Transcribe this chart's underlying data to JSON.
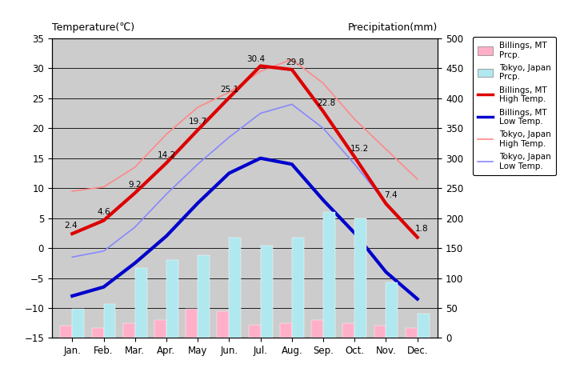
{
  "months": [
    "Jan.",
    "Feb.",
    "Mar.",
    "Apr.",
    "May",
    "Jun.",
    "Jul.",
    "Aug.",
    "Sep.",
    "Oct.",
    "Nov.",
    "Dec."
  ],
  "billings_high": [
    2.4,
    4.6,
    9.2,
    14.2,
    19.7,
    25.1,
    30.4,
    29.8,
    22.8,
    15.2,
    7.4,
    1.8
  ],
  "billings_low": [
    -8.0,
    -6.5,
    -2.5,
    2.0,
    7.5,
    12.5,
    15.0,
    14.0,
    8.0,
    2.5,
    -4.0,
    -8.5
  ],
  "tokyo_high": [
    9.5,
    10.2,
    13.5,
    19.0,
    23.5,
    26.0,
    29.5,
    31.5,
    27.5,
    21.5,
    16.5,
    11.5
  ],
  "tokyo_low": [
    -1.5,
    -0.5,
    3.5,
    9.0,
    14.0,
    18.5,
    22.5,
    24.0,
    20.0,
    14.0,
    7.5,
    2.0
  ],
  "billings_prcp_mm": [
    20,
    17,
    25,
    30,
    48,
    45,
    22,
    24,
    30,
    25,
    20,
    17
  ],
  "tokyo_prcp_mm": [
    48,
    56,
    117,
    130,
    138,
    168,
    154,
    168,
    210,
    200,
    93,
    40
  ],
  "background_color": "#cccccc",
  "title_left": "Temperature(℃)",
  "title_right": "Precipitation(mm)",
  "ylim_left": [
    -15,
    35
  ],
  "ylim_right": [
    0,
    500
  ],
  "bar_color_billings": "#ffb0c8",
  "bar_color_tokyo": "#b0e8f0",
  "line_color_billings_high": "#dd0000",
  "line_color_billings_low": "#0000cc",
  "line_color_tokyo_high": "#ff8888",
  "line_color_tokyo_low": "#8888ff"
}
